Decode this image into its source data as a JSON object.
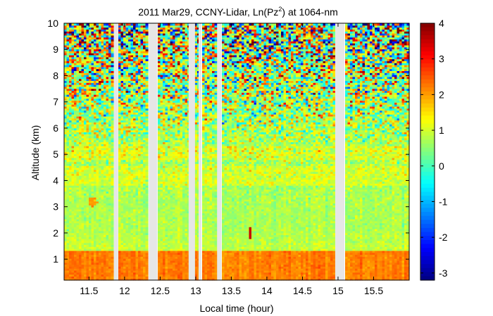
{
  "chart_data": {
    "type": "heatmap",
    "title": {
      "main": "2011 Mar29, CCNY-Lidar, Ln(Pz",
      "superscript": "2",
      "suffix": ") at 1064-nm"
    },
    "xlabel": "Local time (hour)",
    "ylabel": "Altitude (km)",
    "xlim": [
      11.15,
      16.0
    ],
    "ylim": [
      0.2,
      10
    ],
    "x_ticks": [
      "11.5",
      "12",
      "12.5",
      "13",
      "13.5",
      "14",
      "14.5",
      "15",
      "15.5"
    ],
    "x_tick_values": [
      11.5,
      12,
      12.5,
      13,
      13.5,
      14,
      14.5,
      15,
      15.5
    ],
    "y_ticks": [
      "1",
      "2",
      "3",
      "4",
      "5",
      "6",
      "7",
      "8",
      "9",
      "10"
    ],
    "y_tick_values": [
      1,
      2,
      3,
      4,
      5,
      6,
      7,
      8,
      9,
      10
    ],
    "colorbar": {
      "range": [
        -3.2,
        4
      ],
      "ticks": [
        "4",
        "3",
        "2",
        "1",
        "0",
        "-1",
        "-2",
        "-3"
      ],
      "tick_values": [
        4,
        3,
        2,
        1,
        0,
        -1,
        -2,
        -3
      ],
      "colormap": "jet"
    },
    "data_gaps_hours": [
      [
        11.85,
        11.91
      ],
      [
        12.34,
        12.46
      ],
      [
        12.9,
        12.99
      ],
      [
        13.04,
        13.08
      ],
      [
        13.3,
        13.36
      ],
      [
        14.96,
        15.09
      ]
    ],
    "features": {
      "boundary_layer_top_km": 1.3,
      "boundary_layer_value": 2.2,
      "aerosol_layer_km": [
        3.8,
        4.6
      ],
      "aerosol_layer_value": 1.2,
      "plume": {
        "time_hour": 11.55,
        "altitude_km": 3.2,
        "value": 2.0
      },
      "spike": {
        "time_hour": 13.76,
        "altitude_km": 2.0,
        "value": 3.5
      },
      "background_value": 0.7,
      "noisy_above_km": 5.5
    },
    "gap_color": "#e6e6e6"
  }
}
